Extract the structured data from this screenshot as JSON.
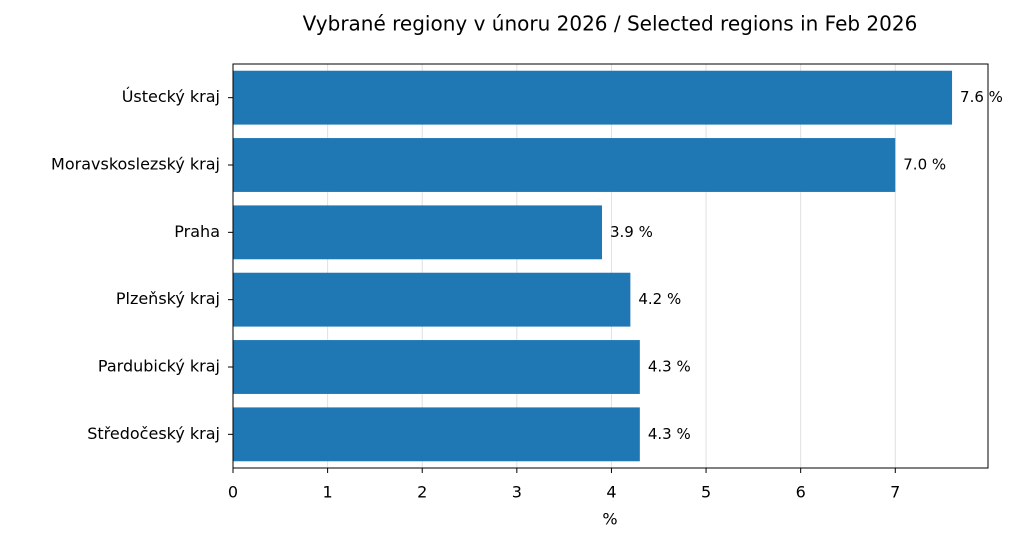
{
  "chart_data": {
    "type": "barh",
    "title": "Vybrané regiony v únoru 2026 / Selected regions in Feb 2026",
    "x_label": "%",
    "categories": [
      "Ústecký kraj",
      "Moravskoslezský kraj",
      "Praha",
      "Plzeňský kraj",
      "Pardubický kraj",
      "Středočeský kraj"
    ],
    "values": [
      7.6,
      7.0,
      3.9,
      4.2,
      4.3,
      4.3
    ],
    "value_labels": [
      "7.6 %",
      "7.0 %",
      "3.9 %",
      "4.2 %",
      "4.3 %",
      "4.3 %"
    ],
    "color": "#1f77b4",
    "xlim": [
      0,
      7.98
    ],
    "xticks": [
      0,
      1,
      2,
      3,
      4,
      5,
      6,
      7
    ],
    "grid": true
  }
}
